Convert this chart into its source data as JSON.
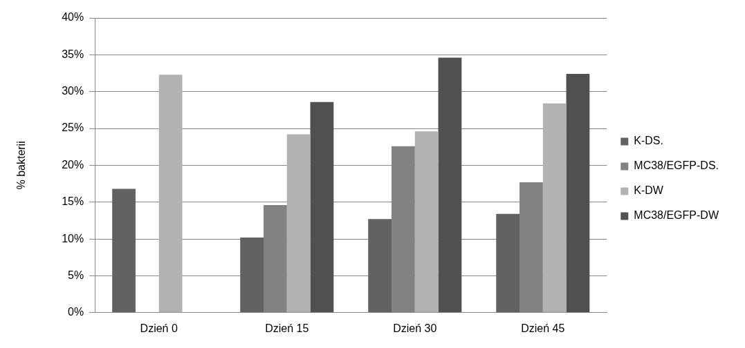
{
  "chart_data": {
    "type": "bar",
    "ylabel": "% bakterii",
    "categories": [
      "Dzień 0",
      "Dzień 15",
      "Dzień 30",
      "Dzień 45"
    ],
    "series": [
      {
        "name": "K-DS.",
        "color": "#626262",
        "values": [
          16.8,
          10.2,
          12.7,
          13.4
        ]
      },
      {
        "name": "MC38/EGFP-DS.",
        "color": "#828282",
        "values": [
          null,
          14.6,
          22.6,
          17.7
        ]
      },
      {
        "name": "K-DW",
        "color": "#b2b2b2",
        "values": [
          32.3,
          24.2,
          24.6,
          28.4
        ]
      },
      {
        "name": "MC38/EGFP-DW",
        "color": "#505050",
        "values": [
          null,
          28.6,
          34.6,
          32.4
        ]
      }
    ],
    "ylim": [
      0,
      40
    ],
    "yticks": [
      {
        "value": 0,
        "label": "0%"
      },
      {
        "value": 5,
        "label": "5%"
      },
      {
        "value": 10,
        "label": "10%"
      },
      {
        "value": 15,
        "label": "15%"
      },
      {
        "value": 20,
        "label": "20%"
      },
      {
        "value": 25,
        "label": "25%"
      },
      {
        "value": 30,
        "label": "30%"
      },
      {
        "value": 35,
        "label": "35%"
      },
      {
        "value": 40,
        "label": "40%"
      }
    ],
    "grid": "y",
    "legend": "right"
  }
}
